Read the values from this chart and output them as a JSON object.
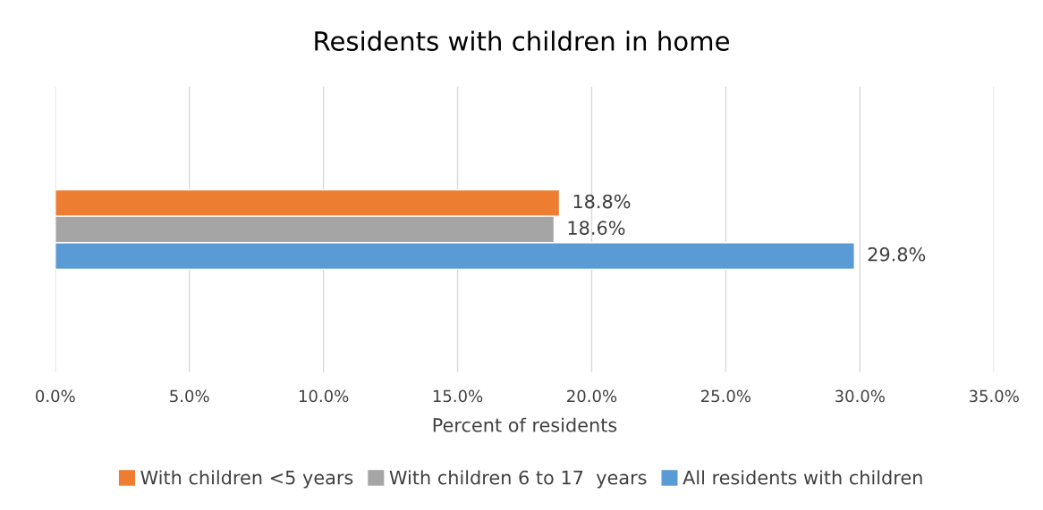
{
  "chart_data": {
    "type": "bar",
    "orientation": "horizontal",
    "title": "Residents with children in home",
    "xlabel": "Percent of residents",
    "categories": [
      null
    ],
    "series": [
      {
        "name": "With children <5 years",
        "color": "#ed7d31",
        "values": [
          18.8
        ],
        "value_labels": [
          "18.8%"
        ]
      },
      {
        "name": "With children 6 to 17  years",
        "color": "#a5a5a5",
        "values": [
          18.6
        ],
        "value_labels": [
          "18.6%"
        ]
      },
      {
        "name": "All residents with children",
        "color": "#5b9bd5",
        "values": [
          29.8
        ],
        "value_labels": [
          "29.8%"
        ]
      }
    ],
    "xlim": [
      0,
      35
    ],
    "xticks": [
      {
        "value": 0,
        "label": "0.0%"
      },
      {
        "value": 5,
        "label": "5.0%"
      },
      {
        "value": 10,
        "label": "10.0%"
      },
      {
        "value": 15,
        "label": "15.0%"
      },
      {
        "value": 20,
        "label": "20.0%"
      },
      {
        "value": 25,
        "label": "25.0%"
      },
      {
        "value": 30,
        "label": "30.0%"
      },
      {
        "value": 35,
        "label": "35.0%"
      }
    ],
    "grid": "x",
    "legend": "bottom"
  }
}
